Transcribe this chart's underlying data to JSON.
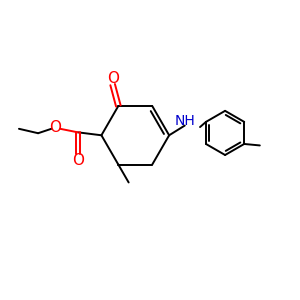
{
  "bg_color": "#ffffff",
  "bond_color": "#000000",
  "o_color": "#ff0000",
  "n_color": "#0000cd",
  "font_size": 10,
  "lw": 1.4,
  "fig_size": [
    3.0,
    3.0
  ],
  "dpi": 100,
  "xlim": [
    0,
    10
  ],
  "ylim": [
    0,
    10
  ]
}
